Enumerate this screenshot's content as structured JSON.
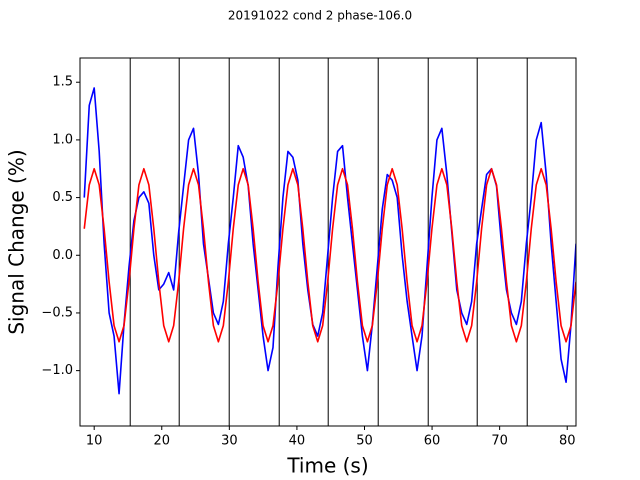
{
  "chart_data": {
    "type": "line",
    "title": "20191022 cond 2 phase-106.0",
    "x_label": "Time (s)",
    "y_label": "Signal Change (%)",
    "xlim": [
      7.9,
      81.3
    ],
    "ylim": [
      -1.48,
      1.71
    ],
    "xticks": [
      10,
      20,
      30,
      40,
      50,
      60,
      70,
      80
    ],
    "yticks": [
      {
        "value": -1,
        "label": "−1.0"
      },
      {
        "value": -0.5,
        "label": "−0.5"
      },
      {
        "value": 0,
        "label": "0.0"
      },
      0.5,
      {
        "value": 1,
        "label": "1.0"
      },
      1.5
    ],
    "vlines": [
      15.33,
      22.58,
      29.98,
      37.38,
      44.63,
      52.03,
      59.43,
      66.68,
      74.08
    ],
    "vline_color": "#000000",
    "x": [
      8.53,
      9.27,
      10.0,
      10.74,
      11.47,
      12.21,
      12.94,
      13.68,
      14.41,
      15.15,
      15.88,
      16.62,
      17.35,
      18.09,
      18.82,
      19.56,
      20.29,
      21.03,
      21.76,
      22.5,
      23.23,
      23.97,
      24.7,
      25.44,
      26.17,
      26.91,
      27.64,
      28.38,
      29.11,
      29.85,
      30.58,
      31.32,
      32.05,
      32.79,
      33.52,
      34.26,
      34.99,
      35.73,
      36.46,
      37.2,
      37.93,
      38.67,
      39.4,
      40.14,
      40.87,
      41.61,
      42.34,
      43.08,
      43.81,
      44.55,
      45.28,
      46.02,
      46.75,
      47.49,
      48.22,
      48.96,
      49.69,
      50.43,
      51.16,
      51.9,
      52.63,
      53.37,
      54.1,
      54.84,
      55.57,
      56.31,
      57.04,
      57.78,
      58.51,
      59.25,
      59.98,
      60.72,
      61.45,
      62.19,
      62.92,
      63.66,
      64.39,
      65.13,
      65.86,
      66.6,
      67.33,
      68.07,
      68.8,
      69.54,
      70.27,
      71.01,
      71.74,
      72.48,
      73.21,
      73.95,
      74.68,
      75.42,
      76.15,
      76.89,
      77.62,
      78.36,
      79.09,
      79.83,
      80.56,
      81.3
    ],
    "series": [
      {
        "color": "#0000ff",
        "values": [
          0.5,
          1.3,
          1.45,
          0.9,
          0.1,
          -0.5,
          -0.7,
          -1.2,
          -0.6,
          -0.1,
          0.3,
          0.5,
          0.55,
          0.45,
          0.0,
          -0.3,
          -0.25,
          -0.15,
          -0.3,
          0.2,
          0.6,
          1.0,
          1.1,
          0.7,
          0.1,
          -0.2,
          -0.5,
          -0.6,
          -0.4,
          0.1,
          0.5,
          0.95,
          0.85,
          0.6,
          0.1,
          -0.3,
          -0.7,
          -1.0,
          -0.8,
          -0.1,
          0.5,
          0.9,
          0.85,
          0.65,
          0.1,
          -0.3,
          -0.6,
          -0.7,
          -0.5,
          0.0,
          0.5,
          0.9,
          0.95,
          0.5,
          0.1,
          -0.3,
          -0.7,
          -1.0,
          -0.6,
          -0.1,
          0.4,
          0.7,
          0.65,
          0.5,
          0.0,
          -0.4,
          -0.7,
          -1.0,
          -0.7,
          -0.1,
          0.5,
          1.0,
          1.1,
          0.7,
          0.2,
          -0.3,
          -0.5,
          -0.6,
          -0.4,
          0.1,
          0.4,
          0.7,
          0.75,
          0.6,
          0.1,
          -0.3,
          -0.5,
          -0.6,
          -0.4,
          0.1,
          0.5,
          1.0,
          1.15,
          0.7,
          0.1,
          -0.4,
          -0.9,
          -1.1,
          -0.6,
          0.1
        ]
      },
      {
        "color": "#ff0000",
        "values": [
          0.23,
          0.61,
          0.75,
          0.61,
          0.23,
          -0.23,
          -0.61,
          -0.75,
          -0.61,
          -0.23,
          0.23,
          0.61,
          0.75,
          0.61,
          0.23,
          -0.23,
          -0.61,
          -0.75,
          -0.61,
          -0.23,
          0.23,
          0.61,
          0.75,
          0.61,
          0.23,
          -0.23,
          -0.61,
          -0.75,
          -0.61,
          -0.23,
          0.23,
          0.61,
          0.75,
          0.61,
          0.23,
          -0.23,
          -0.61,
          -0.75,
          -0.61,
          -0.23,
          0.23,
          0.61,
          0.75,
          0.61,
          0.23,
          -0.23,
          -0.61,
          -0.75,
          -0.61,
          -0.23,
          0.23,
          0.61,
          0.75,
          0.61,
          0.23,
          -0.23,
          -0.61,
          -0.75,
          -0.61,
          -0.23,
          0.23,
          0.61,
          0.75,
          0.61,
          0.23,
          -0.23,
          -0.61,
          -0.75,
          -0.61,
          -0.23,
          0.23,
          0.61,
          0.75,
          0.61,
          0.23,
          -0.23,
          -0.61,
          -0.75,
          -0.61,
          -0.23,
          0.23,
          0.61,
          0.75,
          0.61,
          0.23,
          -0.23,
          -0.61,
          -0.75,
          -0.61,
          -0.23,
          0.23,
          0.61,
          0.75,
          0.61,
          0.23,
          -0.23,
          -0.61,
          -0.75,
          -0.61,
          -0.23
        ]
      }
    ]
  }
}
